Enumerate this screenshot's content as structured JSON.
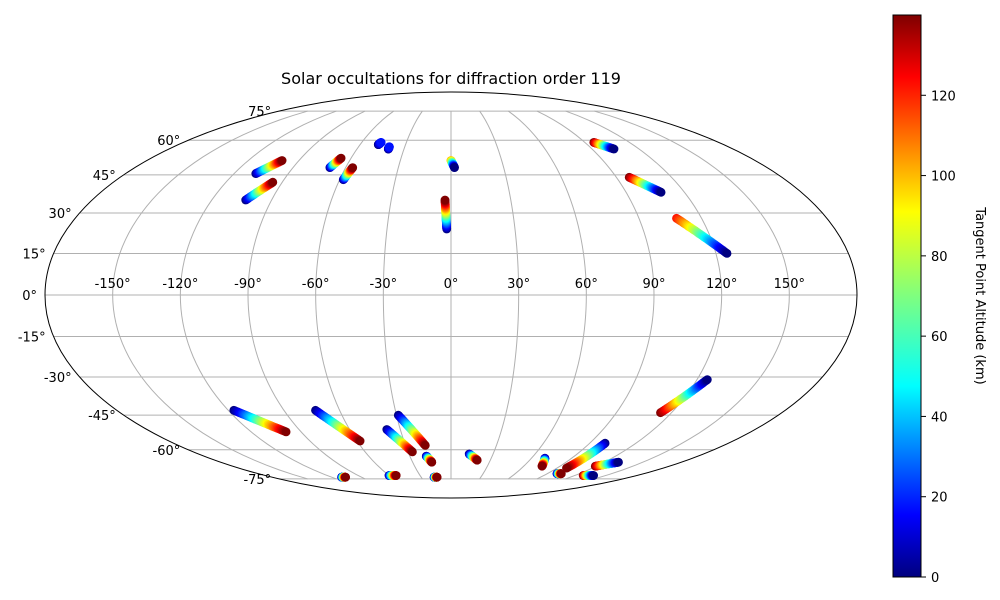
{
  "chart_data": {
    "type": "scatter",
    "projection": "mollweide",
    "title": "Solar occultations for diffraction order 119",
    "x_ticks": [
      "-150°",
      "-120°",
      "-90°",
      "-60°",
      "-30°",
      "0°",
      "30°",
      "60°",
      "90°",
      "120°",
      "150°"
    ],
    "x_tick_values": [
      -150,
      -120,
      -90,
      -60,
      -30,
      0,
      30,
      60,
      90,
      120,
      150
    ],
    "y_ticks": [
      "75°",
      "60°",
      "45°",
      "30°",
      "15°",
      "0°",
      "-15°",
      "-30°",
      "-45°",
      "-60°",
      "-75°"
    ],
    "y_tick_values": [
      75,
      60,
      45,
      30,
      15,
      0,
      -15,
      -30,
      -45,
      -60,
      -75
    ],
    "grid": true,
    "colorbar": {
      "label": "Tangent Point Altitude (km)",
      "ticks": [
        "0",
        "20",
        "40",
        "60",
        "80",
        "100",
        "120"
      ],
      "tick_values": [
        0,
        20,
        40,
        60,
        80,
        100,
        120
      ],
      "range": [
        0,
        140
      ],
      "colormap": "jet"
    },
    "tracks": [
      {
        "start": [
          -108,
          45.5
        ],
        "end": [
          -100,
          51
        ],
        "alt": [
          0,
          140
        ]
      },
      {
        "start": [
          -103,
          35
        ],
        "end": [
          -95,
          42
        ],
        "alt": [
          0,
          140
        ]
      },
      {
        "start": [
          -69,
          48
        ],
        "end": [
          -66,
          52
        ],
        "alt": [
          0,
          140
        ]
      },
      {
        "start": [
          -58,
          43
        ],
        "end": [
          -56,
          48
        ],
        "alt": [
          0,
          140
        ]
      },
      {
        "start": [
          -48,
          58
        ],
        "end": [
          -47,
          59
        ],
        "alt": [
          0,
          20
        ]
      },
      {
        "start": [
          -40,
          56
        ],
        "end": [
          -40,
          57
        ],
        "alt": [
          0,
          20
        ]
      },
      {
        "start": [
          0,
          51
        ],
        "end": [
          2,
          48
        ],
        "alt": [
          100,
          0
        ]
      },
      {
        "start": [
          -2,
          24
        ],
        "end": [
          -3,
          35
        ],
        "alt": [
          0,
          140
        ]
      },
      {
        "start": [
          96,
          59
        ],
        "end": [
          104,
          56
        ],
        "alt": [
          140,
          0
        ]
      },
      {
        "start": [
          97,
          44
        ],
        "end": [
          108,
          38
        ],
        "alt": [
          140,
          0
        ]
      },
      {
        "start": [
          108,
          28
        ],
        "end": [
          125,
          15
        ],
        "alt": [
          120,
          0
        ]
      },
      {
        "start": [
          -117,
          -43
        ],
        "end": [
          -99,
          -52
        ],
        "alt": [
          0,
          140
        ]
      },
      {
        "start": [
          -110,
          -74
        ],
        "end": [
          -106,
          -74
        ],
        "alt": [
          0,
          140
        ]
      },
      {
        "start": [
          -73,
          -43
        ],
        "end": [
          -58,
          -56
        ],
        "alt": [
          0,
          140
        ]
      },
      {
        "start": [
          -60,
          -73
        ],
        "end": [
          -53,
          -73
        ],
        "alt": [
          0,
          140
        ]
      },
      {
        "start": [
          -38,
          -51
        ],
        "end": [
          -27,
          -61
        ],
        "alt": [
          0,
          140
        ]
      },
      {
        "start": [
          -29,
          -45
        ],
        "end": [
          -17,
          -58
        ],
        "alt": [
          0,
          140
        ]
      },
      {
        "start": [
          -17,
          -74
        ],
        "end": [
          -14,
          -74
        ],
        "alt": [
          0,
          140
        ]
      },
      {
        "start": [
          -18,
          -63
        ],
        "end": [
          -15,
          -66
        ],
        "alt": [
          0,
          140
        ]
      },
      {
        "start": [
          13,
          -62
        ],
        "end": [
          20,
          -65
        ],
        "alt": [
          0,
          140
        ]
      },
      {
        "start": [
          70,
          -64
        ],
        "end": [
          75,
          -68
        ],
        "alt": [
          0,
          140
        ]
      },
      {
        "start": [
          100,
          -57
        ],
        "end": [
          98,
          -69
        ],
        "alt": [
          0,
          140
        ]
      },
      {
        "start": [
          99,
          -72
        ],
        "end": [
          103,
          -72
        ],
        "alt": [
          0,
          140
        ]
      },
      {
        "start": [
          119,
          -68
        ],
        "end": [
          131,
          -66
        ],
        "alt": [
          140,
          0
        ]
      },
      {
        "start": [
          128,
          -73
        ],
        "end": [
          138,
          -73
        ],
        "alt": [
          140,
          0
        ]
      },
      {
        "start": [
          114,
          -44
        ],
        "end": [
          125,
          -31
        ],
        "alt": [
          140,
          0
        ]
      }
    ]
  }
}
